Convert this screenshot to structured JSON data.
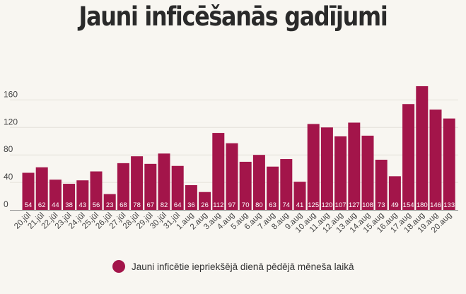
{
  "colors": {
    "bar": "#a3154a",
    "grid": "#e4e1da",
    "baseline": "#8f8f8f",
    "text": "#444444",
    "barLabel": "#ffffff"
  },
  "chart_data": {
    "type": "bar",
    "title": "Jauni inficēšanās gadījumi",
    "categories": [
      "20.jūl",
      "21.jūl",
      "22.jūl",
      "23.jūl",
      "24.jūl",
      "25.jūl",
      "26.jūl",
      "27.jūl",
      "28.jūl",
      "29.jūl",
      "30.jūl",
      "31.jūl",
      "1.aug",
      "2.aug",
      "3.aug",
      "4.aug",
      "5.aug",
      "6.aug",
      "7.aug",
      "8.aug",
      "9.aug",
      "10.aug",
      "11.aug",
      "12.aug",
      "13.aug",
      "14.aug",
      "15.aug",
      "16.aug",
      "17.aug",
      "18.aug",
      "19.aug",
      "20.aug"
    ],
    "series": [
      {
        "name": "Jauni inficētie iepriekšējā dienā pēdējā mēneša laikā",
        "values": [
          54,
          62,
          44,
          38,
          43,
          56,
          23,
          68,
          78,
          67,
          82,
          64,
          36,
          26,
          112,
          97,
          70,
          80,
          63,
          74,
          41,
          125,
          120,
          107,
          127,
          108,
          73,
          49,
          154,
          180,
          146,
          133
        ]
      }
    ],
    "ylim": [
      0,
      180
    ],
    "yticks": [
      0,
      40,
      80,
      120,
      160
    ],
    "grid": true,
    "legend": "bottom"
  }
}
